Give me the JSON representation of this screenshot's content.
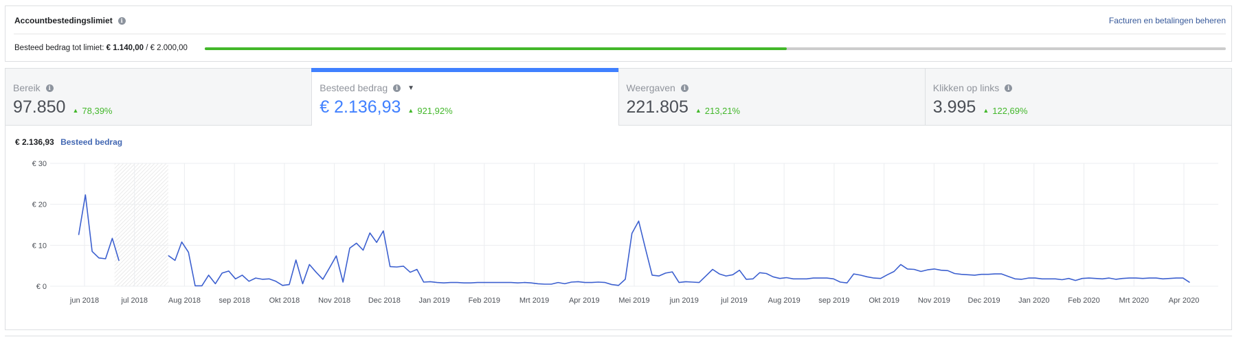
{
  "spending_limit": {
    "title": "Accountbestedingslimiet",
    "manage_link": "Facturen en betalingen beheren",
    "label": "Besteed bedrag tot limiet:",
    "spent": "€ 1.140,00",
    "separator": "/",
    "limit": "€ 2.000,00",
    "progress_fraction": 0.57
  },
  "tabs": [
    {
      "label": "Bereik",
      "value": "97.850",
      "change": "78,39%",
      "active": false
    },
    {
      "label": "Besteed bedrag",
      "value": "€ 2.136,93",
      "change": "921,92%",
      "active": true
    },
    {
      "label": "Weergaven",
      "value": "221.805",
      "change": "213,21%",
      "active": false
    },
    {
      "label": "Klikken op links",
      "value": "3.995",
      "change": "122,69%",
      "active": false
    }
  ],
  "chart_header": {
    "total": "€ 2.136,93",
    "series_label": "Besteed bedrag"
  },
  "colors": {
    "accent": "#4080ff",
    "positive": "#42b72a",
    "line": "#3b5fcf",
    "link": "#365899"
  },
  "chart_data": {
    "type": "line",
    "y_ticks": [
      "€ 0",
      "€ 10",
      "€ 20",
      "€ 30"
    ],
    "ylim": [
      0,
      30
    ],
    "x_ticks": [
      "jun 2018",
      "jul 2018",
      "Aug 2018",
      "sep 2018",
      "Okt 2018",
      "Nov 2018",
      "Dec 2018",
      "Jan 2019",
      "Feb 2019",
      "Mrt 2019",
      "Apr 2019",
      "Mei 2019",
      "jun 2019",
      "jul 2019",
      "Aug 2019",
      "sep 2019",
      "Okt 2019",
      "Nov 2019",
      "Dec 2019",
      "Jan 2020",
      "Feb 2020",
      "Mrt 2020",
      "Apr 2020"
    ],
    "shaded_range_weeks": [
      9,
      21
    ],
    "grid": true,
    "series": [
      {
        "name": "Besteed bedrag",
        "segments": [
          [
            [
              1,
              12.5
            ],
            [
              2.5,
              22.3
            ],
            [
              4,
              8.5
            ],
            [
              5.5,
              6.9
            ],
            [
              7,
              6.7
            ],
            [
              8.5,
              11.7
            ],
            [
              10,
              6.2
            ]
          ],
          [
            [
              21,
              7.5
            ],
            [
              22.5,
              6.3
            ],
            [
              24,
              10.8
            ],
            [
              25.5,
              8.3
            ],
            [
              27,
              0.1
            ],
            [
              28.5,
              0.1
            ],
            [
              30,
              2.7
            ],
            [
              31.5,
              0.6
            ],
            [
              33,
              3.2
            ],
            [
              34.5,
              3.7
            ],
            [
              36,
              1.8
            ],
            [
              37.5,
              2.7
            ],
            [
              39,
              1.2
            ],
            [
              40.5,
              2.0
            ],
            [
              42,
              1.7
            ],
            [
              43.5,
              1.8
            ],
            [
              45,
              1.2
            ],
            [
              46.5,
              0.2
            ],
            [
              48,
              0.4
            ],
            [
              49.5,
              6.4
            ],
            [
              51,
              0.6
            ],
            [
              52.5,
              5.3
            ],
            [
              54,
              3.4
            ],
            [
              55.5,
              1.7
            ],
            [
              57,
              4.5
            ],
            [
              58.5,
              7.4
            ],
            [
              60,
              1.0
            ],
            [
              61.5,
              9.3
            ],
            [
              63,
              10.5
            ],
            [
              64.5,
              8.8
            ],
            [
              66,
              13.0
            ],
            [
              67.5,
              10.7
            ],
            [
              69,
              13.5
            ],
            [
              70.5,
              4.8
            ],
            [
              72,
              4.7
            ],
            [
              73.5,
              4.9
            ],
            [
              75,
              3.4
            ],
            [
              76.5,
              4.1
            ],
            [
              78,
              1.0
            ],
            [
              79.5,
              1.1
            ],
            [
              81,
              0.9
            ],
            [
              82.5,
              0.8
            ],
            [
              84,
              0.9
            ],
            [
              85.5,
              0.9
            ],
            [
              87,
              0.8
            ],
            [
              88.5,
              0.8
            ],
            [
              90,
              0.9
            ],
            [
              91.5,
              0.9
            ],
            [
              93,
              0.9
            ],
            [
              94.5,
              0.9
            ],
            [
              96,
              0.9
            ],
            [
              97.5,
              0.9
            ],
            [
              99,
              0.8
            ],
            [
              100.5,
              0.9
            ],
            [
              102,
              0.8
            ],
            [
              103.5,
              0.6
            ],
            [
              105,
              0.5
            ],
            [
              106.5,
              0.5
            ],
            [
              108,
              0.9
            ],
            [
              109.5,
              0.6
            ],
            [
              111,
              1.0
            ],
            [
              112.5,
              1.1
            ],
            [
              114,
              0.9
            ],
            [
              115.5,
              0.9
            ],
            [
              117,
              1.0
            ],
            [
              118.5,
              0.9
            ],
            [
              120,
              0.4
            ],
            [
              121.5,
              0.2
            ],
            [
              123,
              1.7
            ],
            [
              124.5,
              12.9
            ],
            [
              126,
              15.9
            ],
            [
              127.5,
              9.2
            ],
            [
              129,
              2.7
            ],
            [
              130.5,
              2.5
            ],
            [
              132,
              3.2
            ],
            [
              133.5,
              3.5
            ],
            [
              135,
              0.9
            ],
            [
              136.5,
              1.1
            ],
            [
              138,
              1.0
            ],
            [
              139.5,
              0.9
            ],
            [
              141,
              2.5
            ],
            [
              142.5,
              4.1
            ],
            [
              144,
              3.0
            ],
            [
              145.5,
              2.5
            ],
            [
              147,
              2.8
            ],
            [
              148.5,
              3.9
            ],
            [
              150,
              1.7
            ],
            [
              151.5,
              1.8
            ],
            [
              153,
              3.3
            ],
            [
              154.5,
              3.1
            ],
            [
              156,
              2.3
            ],
            [
              157.5,
              1.9
            ],
            [
              159,
              2.1
            ],
            [
              160.5,
              1.8
            ],
            [
              162,
              1.8
            ],
            [
              163.5,
              1.8
            ],
            [
              165,
              2.0
            ],
            [
              166.5,
              2.0
            ],
            [
              168,
              2.0
            ],
            [
              169.5,
              1.8
            ],
            [
              171,
              1.0
            ],
            [
              172.5,
              0.8
            ],
            [
              174,
              3.0
            ],
            [
              175.5,
              2.7
            ],
            [
              177,
              2.3
            ],
            [
              178.5,
              2.0
            ],
            [
              180,
              1.9
            ],
            [
              181.5,
              2.8
            ],
            [
              183,
              3.6
            ],
            [
              184.5,
              5.3
            ],
            [
              186,
              4.2
            ],
            [
              187.5,
              4.1
            ],
            [
              189,
              3.6
            ],
            [
              190.5,
              4.0
            ],
            [
              192,
              4.2
            ],
            [
              193.5,
              3.9
            ],
            [
              195,
              3.8
            ],
            [
              196.5,
              3.1
            ],
            [
              198,
              2.9
            ],
            [
              199.5,
              2.8
            ],
            [
              201,
              2.7
            ],
            [
              202.5,
              2.9
            ],
            [
              204,
              2.9
            ],
            [
              205.5,
              3.0
            ],
            [
              207,
              3.0
            ],
            [
              208.5,
              2.4
            ],
            [
              210,
              1.8
            ],
            [
              211.5,
              1.7
            ],
            [
              213,
              2.0
            ],
            [
              214.5,
              2.0
            ],
            [
              216,
              1.8
            ],
            [
              217.5,
              1.8
            ],
            [
              219,
              1.8
            ],
            [
              220.5,
              1.6
            ],
            [
              222,
              1.9
            ],
            [
              223.5,
              1.4
            ],
            [
              225,
              1.9
            ],
            [
              226.5,
              2.0
            ],
            [
              228,
              1.9
            ],
            [
              229.5,
              1.8
            ],
            [
              231,
              2.0
            ],
            [
              232.5,
              1.7
            ],
            [
              234,
              1.9
            ],
            [
              235.5,
              2.0
            ],
            [
              237,
              2.0
            ],
            [
              238.5,
              1.9
            ],
            [
              240,
              2.0
            ],
            [
              241.5,
              2.0
            ],
            [
              243,
              1.8
            ],
            [
              244.5,
              1.9
            ],
            [
              246,
              2.0
            ],
            [
              247.5,
              2.0
            ],
            [
              249,
              0.9
            ]
          ]
        ]
      }
    ]
  }
}
